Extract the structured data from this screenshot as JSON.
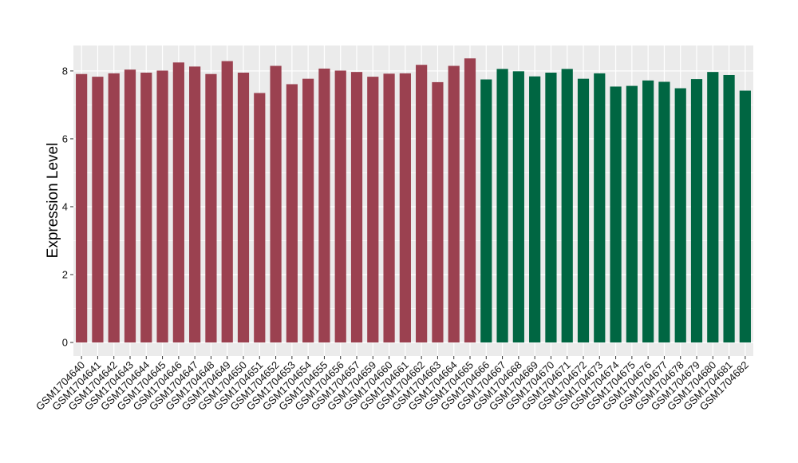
{
  "chart_data": {
    "type": "bar",
    "ylabel": "Expression Level",
    "xlabel": "",
    "ylim": [
      -0.4,
      8.75
    ],
    "yticks": [
      0,
      2,
      4,
      6,
      8
    ],
    "grid": true,
    "categories": [
      "GSM1704640",
      "GSM1704641",
      "GSM1704642",
      "GSM1704643",
      "GSM1704644",
      "GSM1704645",
      "GSM1704646",
      "GSM1704647",
      "GSM1704648",
      "GSM1704649",
      "GSM1704650",
      "GSM1704651",
      "GSM1704652",
      "GSM1704653",
      "GSM1704654",
      "GSM1704655",
      "GSM1704656",
      "GSM1704657",
      "GSM1704659",
      "GSM1704660",
      "GSM1704661",
      "GSM1704662",
      "GSM1704663",
      "GSM1704664",
      "GSM1704665",
      "GSM1704666",
      "GSM1704667",
      "GSM1704668",
      "GSM1704669",
      "GSM1704670",
      "GSM1704671",
      "GSM1704672",
      "GSM1704673",
      "GSM1704674",
      "GSM1704675",
      "GSM1704676",
      "GSM1704677",
      "GSM1704678",
      "GSM1704679",
      "GSM1704680",
      "GSM1704681",
      "GSM1704682"
    ],
    "values": [
      7.91,
      7.83,
      7.93,
      8.04,
      7.95,
      8.01,
      8.25,
      8.13,
      7.91,
      8.29,
      7.95,
      7.35,
      8.15,
      7.61,
      7.77,
      8.07,
      8.01,
      7.97,
      7.83,
      7.92,
      7.93,
      8.18,
      7.67,
      8.15,
      8.37,
      7.75,
      8.06,
      7.99,
      7.84,
      7.95,
      8.06,
      7.77,
      7.93,
      7.54,
      7.56,
      7.72,
      7.68,
      7.49,
      7.76,
      7.97,
      7.88,
      7.42
    ],
    "group_colors": [
      "#9B4150",
      "#006642"
    ],
    "group_split_index": 25
  },
  "colors": {
    "panel_background": "#EBEBEB",
    "grid": "#FFFFFF",
    "tick": "#333333"
  }
}
